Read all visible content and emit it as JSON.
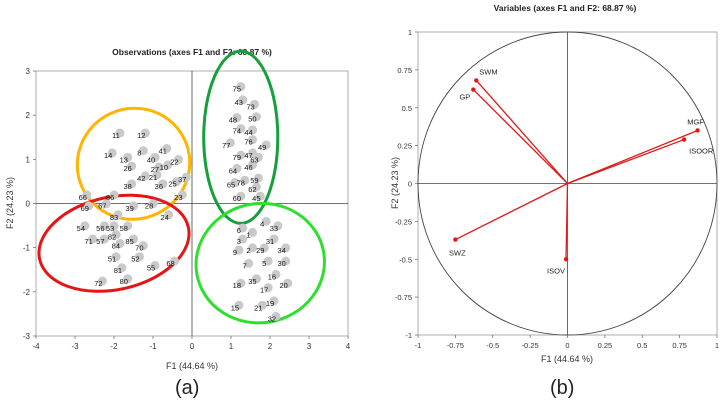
{
  "chart_data": [
    {
      "type": "scatter",
      "panel_label": "(a)",
      "title": "Observations (axes F1 and F2: 68.87 %)",
      "xlabel": "F1 (44.64 %)",
      "ylabel": "F2 (24.23 %)",
      "xlim": [
        -4,
        4
      ],
      "ylim": [
        -3,
        3
      ],
      "xticks": [
        "-4",
        "-3",
        "-2",
        "-1",
        "0",
        "1",
        "2",
        "3",
        "4"
      ],
      "yticks": [
        "-3",
        "-2",
        "-1",
        "0",
        "1",
        "2",
        "3"
      ],
      "grid": false,
      "points": [
        {
          "label": "75",
          "x": 1.15,
          "y": 2.6
        },
        {
          "label": "43",
          "x": 1.2,
          "y": 2.3
        },
        {
          "label": "73",
          "x": 1.5,
          "y": 2.2
        },
        {
          "label": "48",
          "x": 1.05,
          "y": 1.9
        },
        {
          "label": "50",
          "x": 1.55,
          "y": 1.92
        },
        {
          "label": "74",
          "x": 1.15,
          "y": 1.65
        },
        {
          "label": "44",
          "x": 1.45,
          "y": 1.62
        },
        {
          "label": "77",
          "x": 0.88,
          "y": 1.33
        },
        {
          "label": "76",
          "x": 1.45,
          "y": 1.4
        },
        {
          "label": "49",
          "x": 1.8,
          "y": 1.28
        },
        {
          "label": "47",
          "x": 1.45,
          "y": 1.1
        },
        {
          "label": "79",
          "x": 1.15,
          "y": 1.05
        },
        {
          "label": "63",
          "x": 1.6,
          "y": 1.0
        },
        {
          "label": "46",
          "x": 1.45,
          "y": 0.83
        },
        {
          "label": "64",
          "x": 1.05,
          "y": 0.75
        },
        {
          "label": "59",
          "x": 1.6,
          "y": 0.53
        },
        {
          "label": "65",
          "x": 1.0,
          "y": 0.43
        },
        {
          "label": "78",
          "x": 1.25,
          "y": 0.48
        },
        {
          "label": "62",
          "x": 1.55,
          "y": 0.33
        },
        {
          "label": "60",
          "x": 1.15,
          "y": 0.12
        },
        {
          "label": "45",
          "x": 1.65,
          "y": 0.12
        },
        {
          "label": "11",
          "x": -1.95,
          "y": 1.55
        },
        {
          "label": "12",
          "x": -1.3,
          "y": 1.55
        },
        {
          "label": "41",
          "x": -0.75,
          "y": 1.2
        },
        {
          "label": "8",
          "x": -1.35,
          "y": 1.15
        },
        {
          "label": "14",
          "x": -2.15,
          "y": 1.1
        },
        {
          "label": "13",
          "x": -1.75,
          "y": 1.0
        },
        {
          "label": "40",
          "x": -1.05,
          "y": 1.0
        },
        {
          "label": "22",
          "x": -0.45,
          "y": 0.95
        },
        {
          "label": "26",
          "x": -1.65,
          "y": 0.8
        },
        {
          "label": "27",
          "x": -0.95,
          "y": 0.78
        },
        {
          "label": "10",
          "x": -0.72,
          "y": 0.83
        },
        {
          "label": "42",
          "x": -1.3,
          "y": 0.58
        },
        {
          "label": "21",
          "x": -1.0,
          "y": 0.6
        },
        {
          "label": "36",
          "x": -0.85,
          "y": 0.4
        },
        {
          "label": "25",
          "x": -0.5,
          "y": 0.45
        },
        {
          "label": "37",
          "x": -0.25,
          "y": 0.55
        },
        {
          "label": "38",
          "x": -1.65,
          "y": 0.4
        },
        {
          "label": "23",
          "x": -0.35,
          "y": 0.15
        },
        {
          "label": "39",
          "x": -1.6,
          "y": -0.1
        },
        {
          "label": "28",
          "x": -1.1,
          "y": -0.05
        },
        {
          "label": "24",
          "x": -0.7,
          "y": -0.3
        },
        {
          "label": "66",
          "x": -2.8,
          "y": 0.15
        },
        {
          "label": "86",
          "x": -2.1,
          "y": 0.15
        },
        {
          "label": "69",
          "x": -2.75,
          "y": -0.1
        },
        {
          "label": "67",
          "x": -2.3,
          "y": -0.05
        },
        {
          "label": "83",
          "x": -2.0,
          "y": -0.3
        },
        {
          "label": "54",
          "x": -2.85,
          "y": -0.55
        },
        {
          "label": "56",
          "x": -2.35,
          "y": -0.55
        },
        {
          "label": "53",
          "x": -2.1,
          "y": -0.55
        },
        {
          "label": "58",
          "x": -1.75,
          "y": -0.55
        },
        {
          "label": "82",
          "x": -2.05,
          "y": -0.75
        },
        {
          "label": "85",
          "x": -1.6,
          "y": -0.85
        },
        {
          "label": "71",
          "x": -2.65,
          "y": -0.85
        },
        {
          "label": "57",
          "x": -2.35,
          "y": -0.85
        },
        {
          "label": "84",
          "x": -1.95,
          "y": -0.95
        },
        {
          "label": "70",
          "x": -1.35,
          "y": -1.0
        },
        {
          "label": "51",
          "x": -2.05,
          "y": -1.25
        },
        {
          "label": "52",
          "x": -1.45,
          "y": -1.25
        },
        {
          "label": "81",
          "x": -1.9,
          "y": -1.5
        },
        {
          "label": "55",
          "x": -1.05,
          "y": -1.45
        },
        {
          "label": "68",
          "x": -0.55,
          "y": -1.35
        },
        {
          "label": "72",
          "x": -2.4,
          "y": -1.8
        },
        {
          "label": "80",
          "x": -1.75,
          "y": -1.75
        },
        {
          "label": "6",
          "x": 1.2,
          "y": -0.6
        },
        {
          "label": "1",
          "x": 1.45,
          "y": -0.7
        },
        {
          "label": "4",
          "x": 1.8,
          "y": -0.45
        },
        {
          "label": "33",
          "x": 2.1,
          "y": -0.55
        },
        {
          "label": "3",
          "x": 1.2,
          "y": -0.85
        },
        {
          "label": "31",
          "x": 2.0,
          "y": -0.85
        },
        {
          "label": "34",
          "x": 2.3,
          "y": -1.05
        },
        {
          "label": "2",
          "x": 1.45,
          "y": -1.05
        },
        {
          "label": "29",
          "x": 1.75,
          "y": -1.05
        },
        {
          "label": "9",
          "x": 1.1,
          "y": -1.1
        },
        {
          "label": "7",
          "x": 1.35,
          "y": -1.4
        },
        {
          "label": "5",
          "x": 1.85,
          "y": -1.35
        },
        {
          "label": "30",
          "x": 2.3,
          "y": -1.35
        },
        {
          "label": "16",
          "x": 2.05,
          "y": -1.65
        },
        {
          "label": "18",
          "x": 1.15,
          "y": -1.85
        },
        {
          "label": "35",
          "x": 1.55,
          "y": -1.75
        },
        {
          "label": "20",
          "x": 2.35,
          "y": -1.85
        },
        {
          "label": "17",
          "x": 1.85,
          "y": -1.95
        },
        {
          "label": "15",
          "x": 1.1,
          "y": -2.35
        },
        {
          "label": "21",
          "x": 1.7,
          "y": -2.35
        },
        {
          "label": "19",
          "x": 2.0,
          "y": -2.25
        },
        {
          "label": "32",
          "x": 2.05,
          "y": -2.6
        }
      ],
      "groups": [
        {
          "color": "#ffb400",
          "cx": -1.5,
          "cy": 0.9,
          "rx": 1.45,
          "ry": 1.25,
          "rotation_deg": -30
        },
        {
          "color": "#e51515",
          "cx": -2.0,
          "cy": -0.9,
          "rx": 1.95,
          "ry": 1.05,
          "rotation_deg": -12
        },
        {
          "color": "#14a03a",
          "cx": 1.25,
          "cy": 1.5,
          "rx": 0.95,
          "ry": 1.95,
          "rotation_deg": 0
        },
        {
          "color": "#2ee02e",
          "cx": 1.75,
          "cy": -1.35,
          "rx": 1.65,
          "ry": 1.35,
          "rotation_deg": -10
        }
      ]
    },
    {
      "type": "scatter",
      "subtype": "correlation-circle",
      "panel_label": "(b)",
      "title": "Variables (axes F1 and F2: 68.87 %)",
      "xlabel": "F1 (44.64 %)",
      "ylabel": "F2 (24.23 %)",
      "xlim": [
        -1,
        1
      ],
      "ylim": [
        -1,
        1
      ],
      "xticks": [
        "-1",
        "-0.75",
        "-0.5",
        "-0.25",
        "0",
        "0.25",
        "0.5",
        "0.75",
        "1"
      ],
      "yticks": [
        "-1",
        "-0.75",
        "-0.5",
        "-0.25",
        "0",
        "0.25",
        "0.5",
        "0.75",
        "1"
      ],
      "grid": false,
      "vector_color": "#e01818",
      "vectors": [
        {
          "label": "SWM",
          "x": -0.61,
          "y": 0.68
        },
        {
          "label": "GP",
          "x": -0.63,
          "y": 0.62
        },
        {
          "label": "MGF",
          "x": 0.87,
          "y": 0.35
        },
        {
          "label": "ISOOR",
          "x": 0.78,
          "y": 0.29
        },
        {
          "label": "SWZ",
          "x": -0.75,
          "y": -0.37
        },
        {
          "label": "ISOV",
          "x": -0.01,
          "y": -0.5
        }
      ]
    }
  ]
}
